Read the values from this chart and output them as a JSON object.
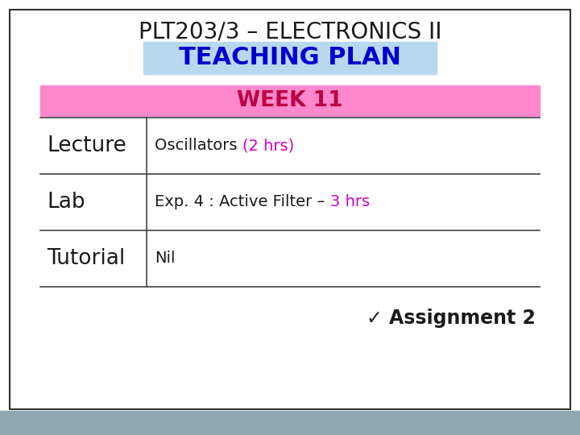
{
  "title": "PLT203/3 – ELECTRONICS II",
  "title_color": "#1a1a1a",
  "title_fontsize": 20,
  "teaching_plan_text": "TEACHING PLAN",
  "teaching_plan_color": "#0000cc",
  "teaching_plan_bg": "#b8d8f0",
  "teaching_plan_fontsize": 22,
  "week_text": "WEEK 11",
  "week_color": "#bb0044",
  "week_bg": "#ff88cc",
  "week_fontsize": 19,
  "rows": [
    {
      "label": "Lecture",
      "content_black": "Oscillators ",
      "content_colored": "(2 hrs)",
      "colored_color": "#cc00cc"
    },
    {
      "label": "Lab",
      "content_black": "Exp. 4 : Active Filter – ",
      "content_colored": "3 hrs",
      "colored_color": "#cc00cc"
    },
    {
      "label": "Tutorial",
      "content_black": "Nil",
      "content_colored": "",
      "colored_color": "#cc00cc"
    }
  ],
  "label_fontsize": 19,
  "content_fontsize": 14,
  "assignment_text": "✓ Assignment 2",
  "assignment_color": "#1a1a1a",
  "assignment_fontsize": 17,
  "bg_color": "#ffffff",
  "footer_color": "#8fa8b0",
  "line_color": "#444444",
  "border_color": "#333333"
}
